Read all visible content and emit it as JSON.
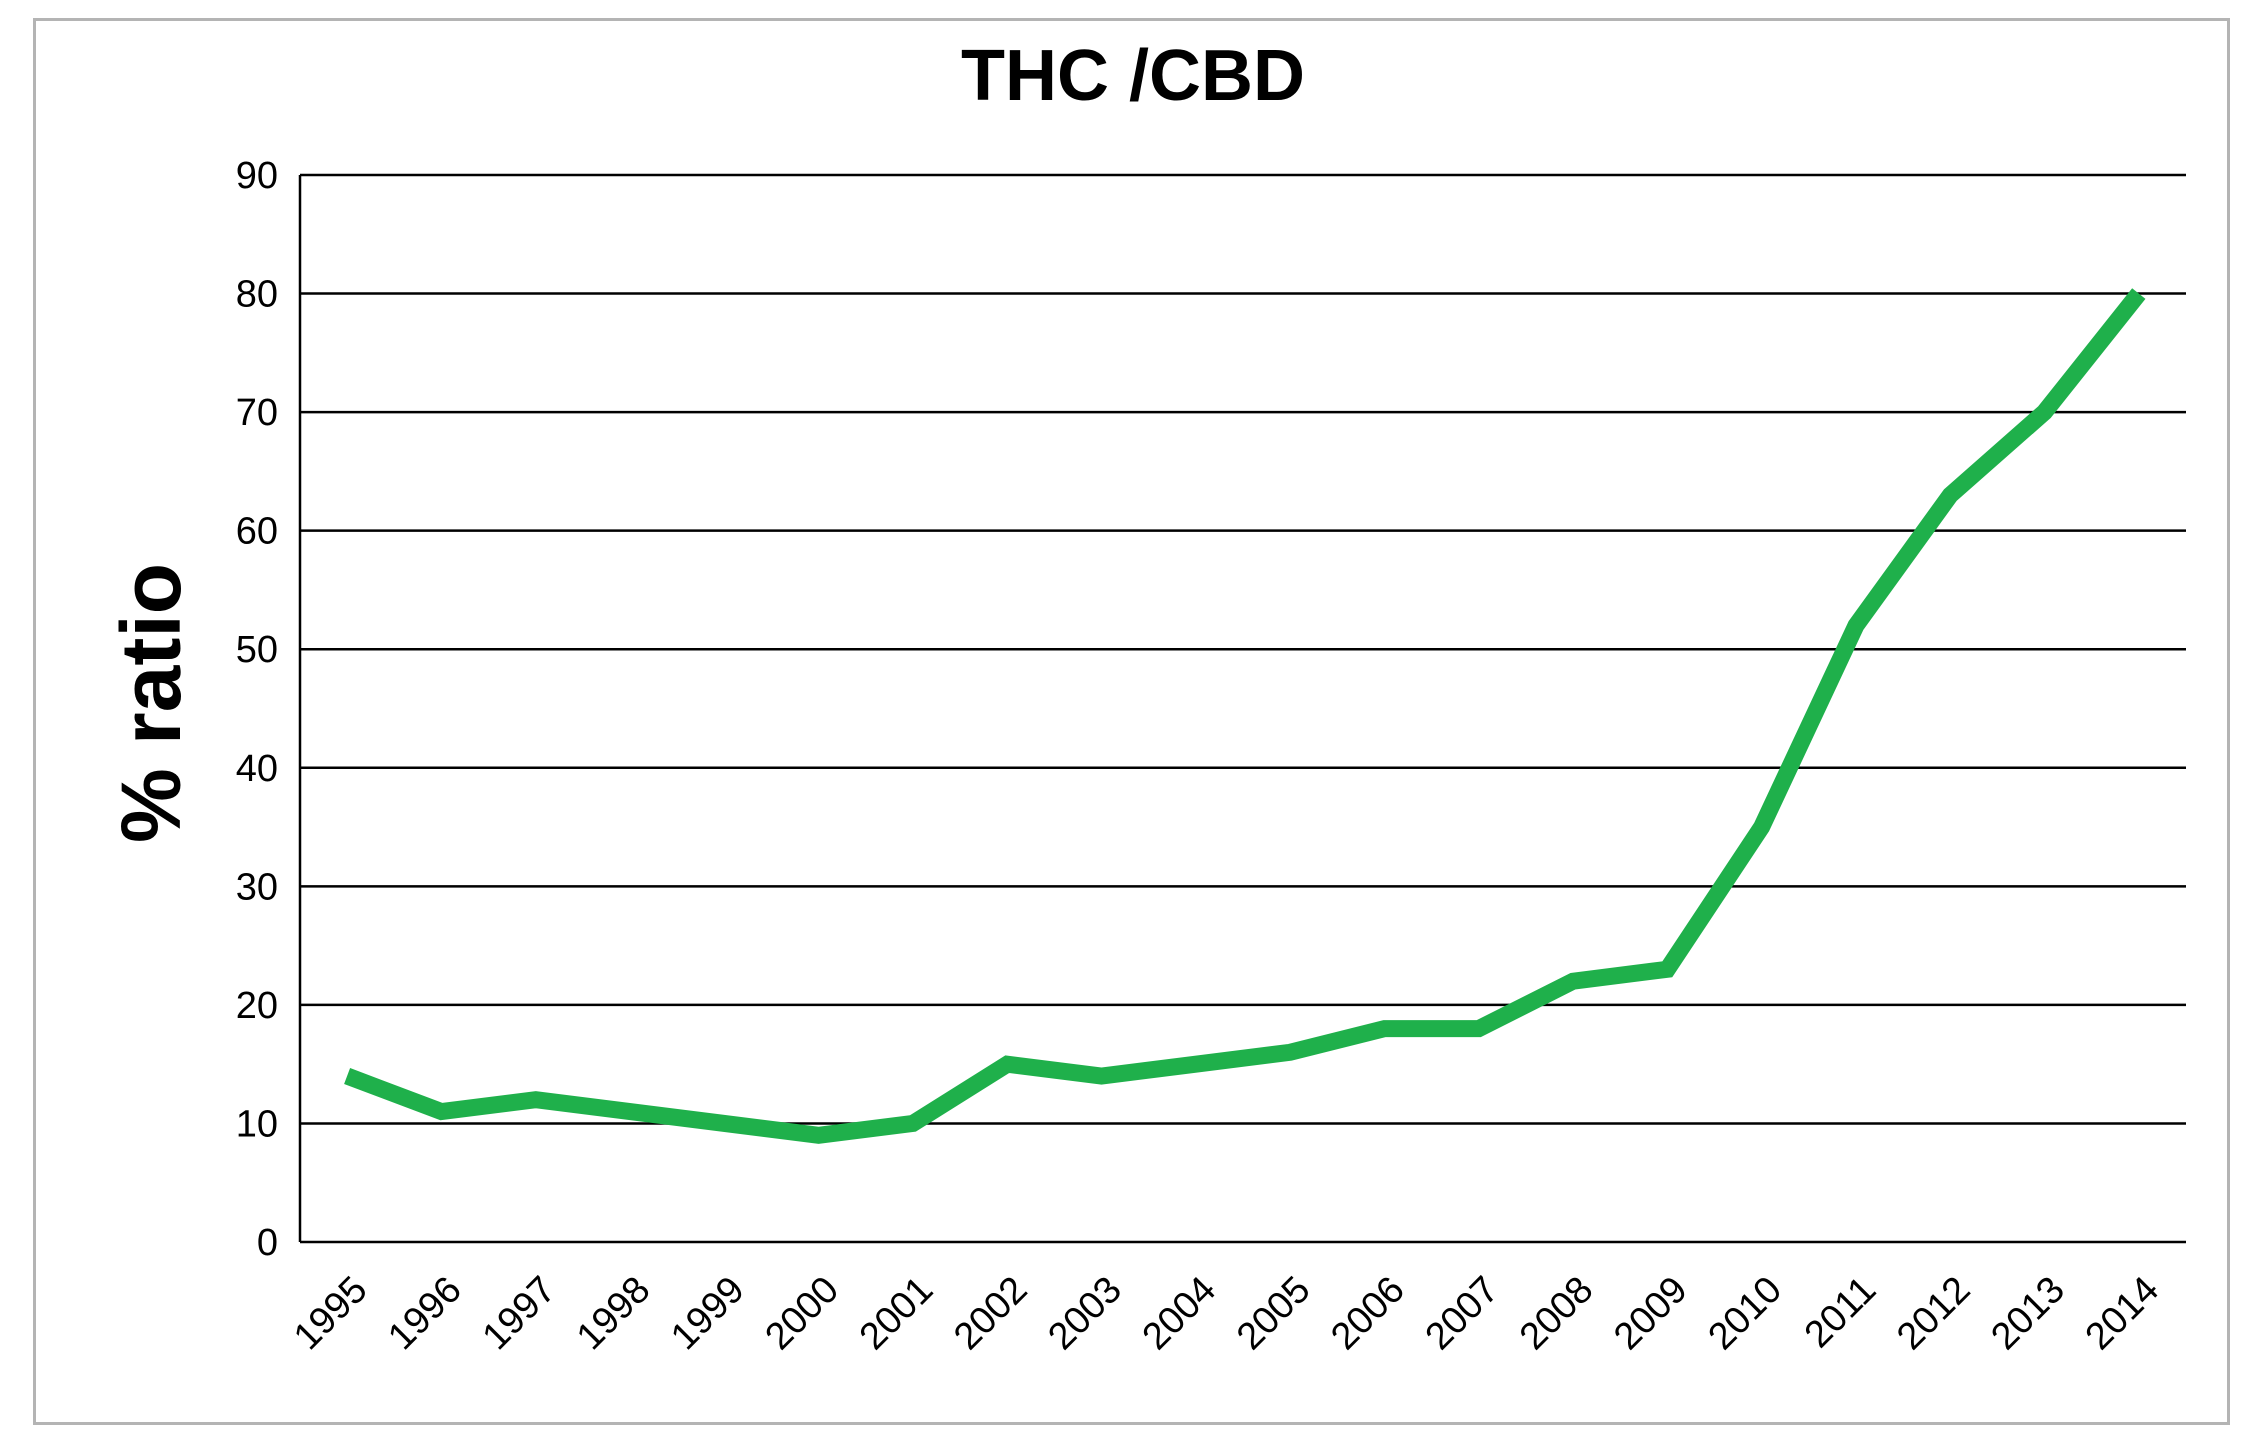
{
  "chart_data": {
    "type": "line",
    "title": "THC /CBD",
    "xlabel": "",
    "ylabel": "% ratio",
    "ylim": [
      0,
      90
    ],
    "yticks": [
      "0",
      "10",
      "20",
      "30",
      "40",
      "50",
      "60",
      "70",
      "80",
      "90"
    ],
    "grid": true,
    "legend": "none",
    "categories": [
      "1995",
      "1996",
      "1997",
      "1998",
      "1999",
      "2000",
      "2001",
      "2002",
      "2003",
      "2004",
      "2005",
      "2006",
      "2007",
      "2008",
      "2009",
      "2010",
      "2011",
      "2012",
      "2013",
      "2014"
    ],
    "series": [
      {
        "color": "#1fb04b",
        "values": [
          14,
          11,
          12,
          11,
          10,
          9,
          10,
          15,
          14,
          15,
          16,
          18,
          18,
          22,
          23,
          35,
          52,
          63,
          70,
          80
        ]
      }
    ]
  }
}
